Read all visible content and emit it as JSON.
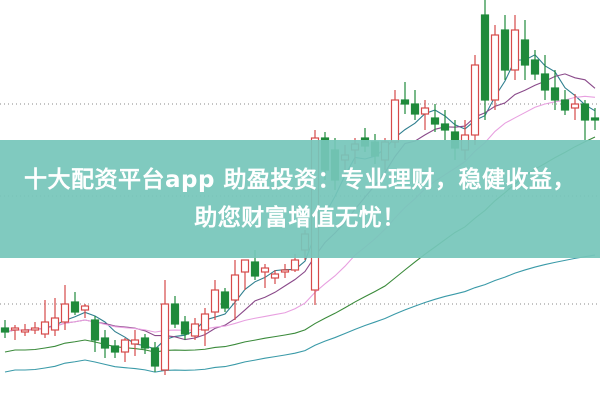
{
  "title": "十大配资平台app 助盈投资：专业理财，稳健收益，助您财富增值无忧！",
  "colors": {
    "up": "#d64a4a",
    "down": "#1f8a3b",
    "banner": "#76c6ba",
    "grid": "#888888"
  },
  "chart_data": {
    "type": "candlestick",
    "grid": "dotted horizontal",
    "moving_averages": [
      {
        "period": 5,
        "color": "#2f7f8f"
      },
      {
        "period": 10,
        "color": "#8a4a8a"
      },
      {
        "period": 20,
        "color": "#e8a0e0"
      },
      {
        "period": 30,
        "color": "#3a8a3a"
      },
      {
        "period": 60,
        "color": "#3a9aa8"
      }
    ],
    "ohlc": [
      [
        72,
        80,
        62,
        68
      ],
      [
        70,
        75,
        60,
        72
      ],
      [
        68,
        76,
        64,
        70
      ],
      [
        70,
        78,
        66,
        72
      ],
      [
        66,
        100,
        62,
        78
      ],
      [
        70,
        102,
        64,
        82
      ],
      [
        78,
        115,
        70,
        96
      ],
      [
        98,
        108,
        85,
        88
      ],
      [
        90,
        96,
        82,
        94
      ],
      [
        80,
        84,
        48,
        60
      ],
      [
        62,
        70,
        42,
        52
      ],
      [
        54,
        60,
        42,
        48
      ],
      [
        48,
        62,
        38,
        60
      ],
      [
        56,
        70,
        44,
        60
      ],
      [
        62,
        66,
        46,
        52
      ],
      [
        52,
        58,
        28,
        34
      ],
      [
        30,
        120,
        25,
        96
      ],
      [
        96,
        104,
        72,
        76
      ],
      [
        78,
        84,
        60,
        66
      ],
      [
        64,
        82,
        60,
        76
      ],
      [
        70,
        92,
        54,
        86
      ],
      [
        88,
        120,
        80,
        110
      ],
      [
        108,
        112,
        88,
        92
      ],
      [
        100,
        140,
        80,
        125
      ],
      [
        128,
        140,
        110,
        140
      ],
      [
        138,
        150,
        120,
        124
      ],
      [
        128,
        136,
        112,
        132
      ],
      [
        122,
        130,
        116,
        126
      ],
      [
        128,
        136,
        122,
        130
      ],
      [
        130,
        146,
        128,
        140
      ],
      [
        150,
        170,
        140,
        166
      ],
      [
        110,
        270,
        95,
        262
      ],
      [
        262,
        268,
        220,
        230
      ],
      [
        250,
        262,
        210,
        220
      ],
      [
        240,
        255,
        225,
        245
      ],
      [
        250,
        262,
        236,
        256
      ],
      [
        262,
        272,
        248,
        254
      ],
      [
        258,
        266,
        236,
        244
      ],
      [
        240,
        262,
        230,
        258
      ],
      [
        258,
        310,
        252,
        300
      ],
      [
        300,
        318,
        286,
        296
      ],
      [
        296,
        310,
        280,
        286
      ],
      [
        286,
        300,
        270,
        292
      ],
      [
        282,
        296,
        268,
        276
      ],
      [
        276,
        290,
        260,
        270
      ],
      [
        268,
        280,
        240,
        252
      ],
      [
        250,
        280,
        240,
        265
      ],
      [
        265,
        345,
        255,
        335
      ],
      [
        385,
        400,
        280,
        300
      ],
      [
        300,
        375,
        290,
        365
      ],
      [
        370,
        385,
        320,
        330
      ],
      [
        330,
        385,
        320,
        370
      ],
      [
        360,
        380,
        320,
        335
      ],
      [
        340,
        350,
        320,
        326
      ],
      [
        326,
        345,
        300,
        310
      ],
      [
        312,
        330,
        290,
        300
      ],
      [
        300,
        310,
        285,
        290
      ],
      [
        292,
        306,
        280,
        296
      ],
      [
        296,
        300,
        260,
        280
      ],
      [
        282,
        292,
        270,
        280
      ]
    ]
  }
}
